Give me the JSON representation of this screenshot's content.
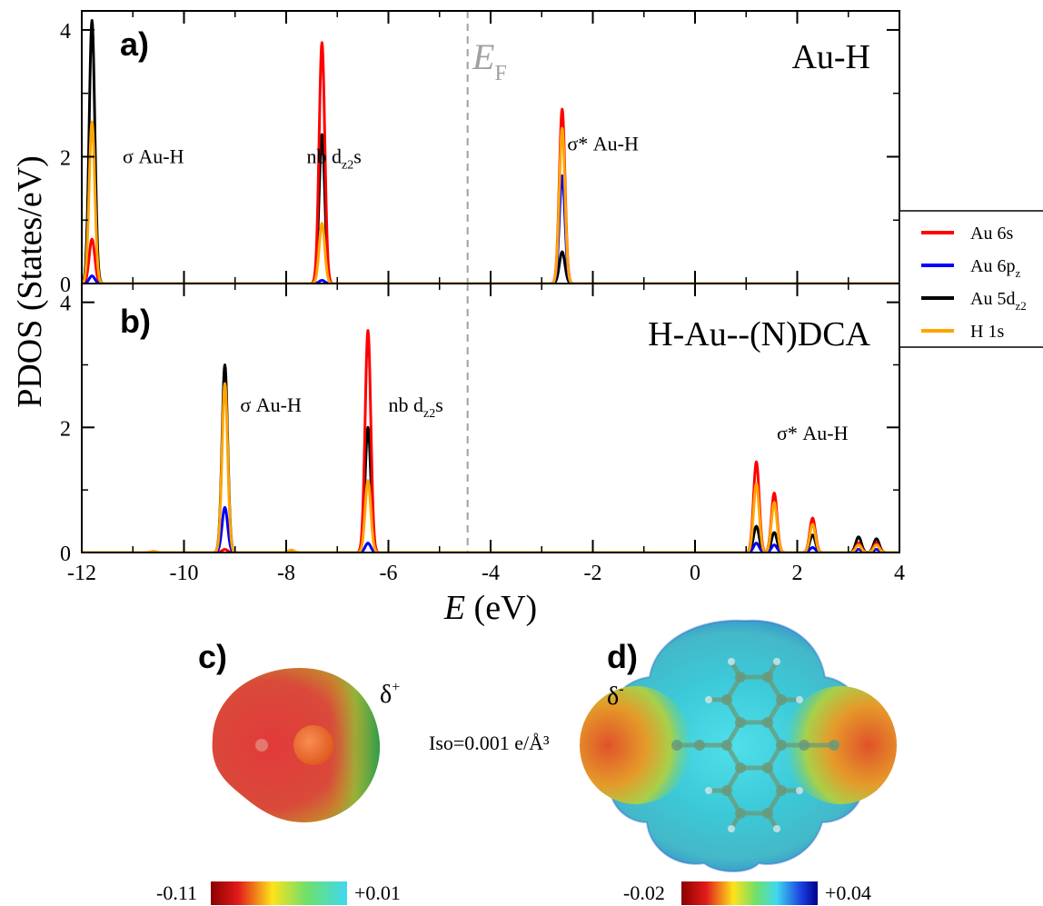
{
  "chart_data": [
    {
      "type": "line",
      "panel_label": "a)",
      "system_label": "Au-H",
      "xlabel": "E (eV)",
      "ylabel": "PDOS (States/eV)",
      "xlim": [
        -12,
        4
      ],
      "ylim": [
        0,
        4.3
      ],
      "x_ticks": [
        "-12",
        "-10",
        "-8",
        "-6",
        "-4",
        "-2",
        "0",
        "2",
        "4"
      ],
      "y_ticks": [
        "0",
        "2",
        "4"
      ],
      "fermi_level": -4.45,
      "fermi_label": "E",
      "fermi_label_sub": "F",
      "peak_labels": [
        {
          "text": "σ Au-H",
          "sub": "",
          "after": "",
          "x": -11.2,
          "y": 1.9
        },
        {
          "text": "nb d",
          "sub": "z2",
          "after": "s",
          "x": -7.6,
          "y": 1.9
        },
        {
          "text": "σ* Au-H",
          "sub": "",
          "after": "",
          "x": -2.5,
          "y": 2.1
        }
      ],
      "series": [
        {
          "name": "Au 6s",
          "color": "#ff0000",
          "peaks": [
            [
              -11.8,
              0.7
            ],
            [
              -7.3,
              3.8
            ],
            [
              -2.6,
              2.75
            ]
          ]
        },
        {
          "name": "Au 6pz",
          "color": "#0000ff",
          "peaks": [
            [
              -11.8,
              0.12
            ],
            [
              -7.3,
              0.05
            ],
            [
              -2.6,
              1.7
            ]
          ]
        },
        {
          "name": "Au 5dz2",
          "color": "#000000",
          "peaks": [
            [
              -11.8,
              4.15
            ],
            [
              -7.3,
              2.35
            ],
            [
              -2.6,
              0.5
            ]
          ]
        },
        {
          "name": "H 1s",
          "color": "#ffa500",
          "peaks": [
            [
              -11.8,
              2.55
            ],
            [
              -7.3,
              0.95
            ],
            [
              -2.6,
              2.45
            ]
          ]
        }
      ]
    },
    {
      "type": "line",
      "panel_label": "b)",
      "system_label": "H-Au--(N)DCA",
      "xlabel": "E (eV)",
      "ylabel": "PDOS (States/eV)",
      "xlim": [
        -12,
        4
      ],
      "ylim": [
        0,
        4.3
      ],
      "x_ticks": [
        "-12",
        "-10",
        "-8",
        "-6",
        "-4",
        "-2",
        "0",
        "2",
        "4"
      ],
      "y_ticks": [
        "0",
        "2",
        "4"
      ],
      "fermi_level": -4.45,
      "peak_labels": [
        {
          "text": "σ Au-H",
          "sub": "",
          "after": "",
          "x": -8.9,
          "y": 2.25
        },
        {
          "text": "nb d",
          "sub": "z2",
          "after": "s",
          "x": -6.0,
          "y": 2.25
        },
        {
          "text": "σ* Au-H",
          "sub": "",
          "after": "",
          "x": 1.6,
          "y": 1.8
        }
      ],
      "series": [
        {
          "name": "Au 6s",
          "color": "#ff0000",
          "peaks": [
            [
              -9.2,
              0.05
            ],
            [
              -6.4,
              3.55
            ],
            [
              1.2,
              1.45
            ],
            [
              1.55,
              0.95
            ],
            [
              2.3,
              0.55
            ],
            [
              3.2,
              0.15
            ],
            [
              3.55,
              0.15
            ]
          ]
        },
        {
          "name": "Au 6pz",
          "color": "#0000ff",
          "peaks": [
            [
              -9.2,
              0.72
            ],
            [
              -6.4,
              0.15
            ],
            [
              1.2,
              0.15
            ],
            [
              1.55,
              0.12
            ],
            [
              2.3,
              0.08
            ],
            [
              3.2,
              0.05
            ],
            [
              3.55,
              0.05
            ]
          ]
        },
        {
          "name": "Au 5dz2",
          "color": "#000000",
          "peaks": [
            [
              -9.2,
              3.0
            ],
            [
              -6.4,
              2.0
            ],
            [
              1.2,
              0.42
            ],
            [
              1.55,
              0.32
            ],
            [
              2.3,
              0.28
            ],
            [
              3.2,
              0.25
            ],
            [
              3.55,
              0.22
            ]
          ]
        },
        {
          "name": "H 1s",
          "color": "#ffa500",
          "peaks": [
            [
              -10.6,
              0.02
            ],
            [
              -9.2,
              2.7
            ],
            [
              -7.9,
              0.04
            ],
            [
              -6.4,
              1.15
            ],
            [
              1.2,
              1.1
            ],
            [
              1.55,
              0.8
            ],
            [
              2.3,
              0.45
            ],
            [
              3.2,
              0.12
            ],
            [
              3.55,
              0.12
            ]
          ]
        }
      ]
    }
  ],
  "legend": {
    "items": [
      {
        "label": "Au 6s",
        "sub": "",
        "color": "#ff0000"
      },
      {
        "label": "Au 6p",
        "sub": "z",
        "color": "#0000ff"
      },
      {
        "label": "Au 5d",
        "sub": "z2",
        "color": "#000000"
      },
      {
        "label": "H 1s",
        "sub": "",
        "color": "#ffa500"
      }
    ]
  },
  "panel_c": {
    "label": "c)",
    "charge_label": "δ",
    "charge_sup": "+",
    "scale_min": "-0.11",
    "scale_max": "+0.01"
  },
  "panel_d": {
    "label": "d)",
    "charge_label": "δ",
    "charge_sup": "-",
    "scale_min": "-0.02",
    "scale_max": "+0.04"
  },
  "iso_label": "Iso=0.001 e/Å³"
}
